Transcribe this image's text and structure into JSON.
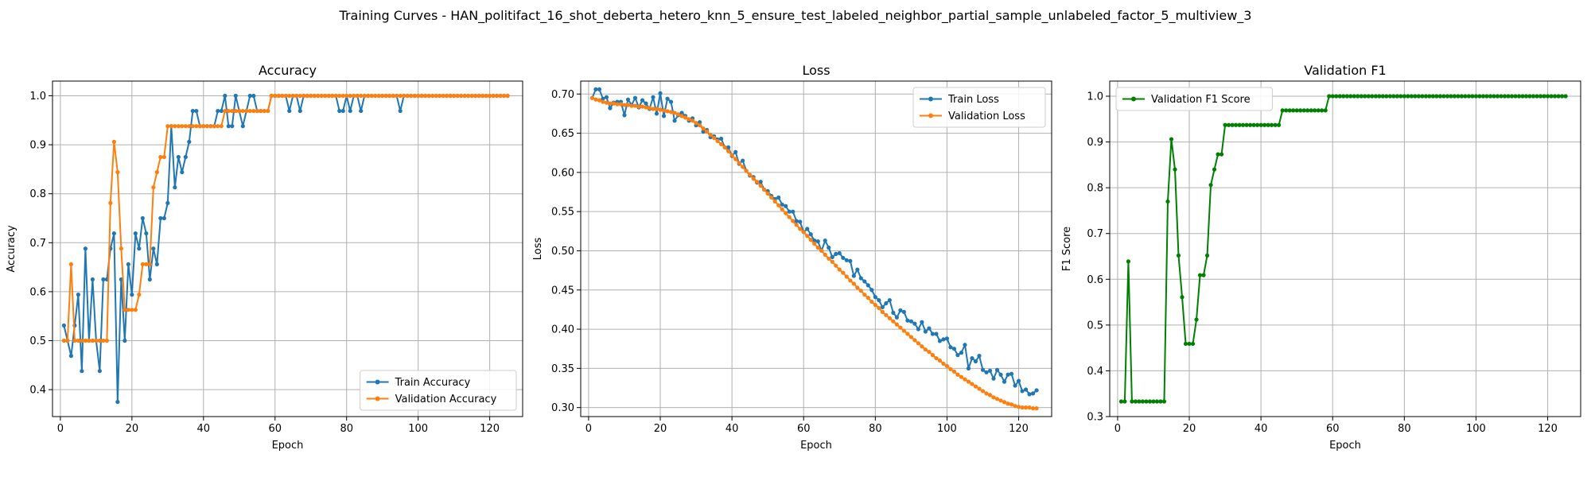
{
  "suptitle": "Training Curves - HAN_politifact_16_shot_deberta_hetero_knn_5_ensure_test_labeled_neighbor_partial_sample_unlabeled_factor_5_multiview_3",
  "chart_data": [
    {
      "type": "line",
      "title": "Accuracy",
      "xlabel": "Epoch",
      "ylabel": "Accuracy",
      "xlim": [
        -2.2,
        129.2
      ],
      "ylim": [
        0.345,
        1.03
      ],
      "xticks": [
        0,
        20,
        40,
        60,
        80,
        100,
        120
      ],
      "yticks": [
        0.4,
        0.5,
        0.6,
        0.7,
        0.8,
        0.9,
        1.0
      ],
      "ytick_labels": [
        "0.4",
        "0.5",
        "0.6",
        "0.7",
        "0.8",
        "0.9",
        "1.0"
      ],
      "legend_loc": "lower-right",
      "grid": true,
      "series": [
        {
          "name": "Train Accuracy",
          "color": "#1f77b4",
          "x_start": 1,
          "values": [
            0.531,
            0.5,
            0.469,
            0.531,
            0.594,
            0.438,
            0.688,
            0.5,
            0.625,
            0.5,
            0.438,
            0.625,
            0.625,
            0.688,
            0.719,
            0.375,
            0.625,
            0.5,
            0.656,
            0.594,
            0.719,
            0.688,
            0.75,
            0.719,
            0.625,
            0.688,
            0.656,
            0.75,
            0.75,
            0.781,
            0.938,
            0.813,
            0.875,
            0.844,
            0.875,
            0.906,
            0.969,
            0.969,
            0.938,
            0.938,
            0.938,
            0.938,
            0.938,
            0.969,
            0.969,
            1.0,
            0.938,
            0.938,
            1.0,
            0.969,
            0.938,
            0.969,
            1.0,
            1.0,
            0.969,
            0.969,
            0.969,
            0.969,
            1.0,
            1.0,
            1.0,
            1.0,
            1.0,
            0.969,
            1.0,
            1.0,
            0.969,
            1.0,
            1.0,
            1.0,
            1.0,
            1.0,
            1.0,
            1.0,
            1.0,
            1.0,
            1.0,
            0.969,
            0.969,
            1.0,
            0.969,
            1.0,
            1.0,
            0.969,
            1.0,
            1.0,
            1.0,
            1.0,
            1.0,
            1.0,
            1.0,
            1.0,
            1.0,
            1.0,
            0.969,
            1.0,
            1.0,
            1.0,
            1.0,
            1.0,
            1.0,
            1.0,
            1.0,
            1.0,
            1.0,
            1.0,
            1.0,
            1.0,
            1.0,
            1.0,
            1.0,
            1.0,
            1.0,
            1.0,
            1.0,
            1.0,
            1.0,
            1.0,
            1.0,
            1.0,
            1.0,
            1.0,
            1.0,
            1.0,
            1.0
          ]
        },
        {
          "name": "Validation Accuracy",
          "color": "#ff7f0e",
          "x_start": 1,
          "values": [
            0.5,
            0.5,
            0.656,
            0.5,
            0.5,
            0.5,
            0.5,
            0.5,
            0.5,
            0.5,
            0.5,
            0.5,
            0.5,
            0.781,
            0.906,
            0.844,
            0.688,
            0.563,
            0.563,
            0.563,
            0.563,
            0.594,
            0.656,
            0.656,
            0.656,
            0.813,
            0.844,
            0.875,
            0.875,
            0.938,
            0.938,
            0.938,
            0.938,
            0.938,
            0.938,
            0.938,
            0.938,
            0.938,
            0.938,
            0.938,
            0.938,
            0.938,
            0.938,
            0.938,
            0.938,
            0.969,
            0.969,
            0.969,
            0.969,
            0.969,
            0.969,
            0.969,
            0.969,
            0.969,
            0.969,
            0.969,
            0.969,
            0.969,
            1.0,
            1.0,
            1.0,
            1.0,
            1.0,
            1.0,
            1.0,
            1.0,
            1.0,
            1.0,
            1.0,
            1.0,
            1.0,
            1.0,
            1.0,
            1.0,
            1.0,
            1.0,
            1.0,
            1.0,
            1.0,
            1.0,
            1.0,
            1.0,
            1.0,
            1.0,
            1.0,
            1.0,
            1.0,
            1.0,
            1.0,
            1.0,
            1.0,
            1.0,
            1.0,
            1.0,
            1.0,
            1.0,
            1.0,
            1.0,
            1.0,
            1.0,
            1.0,
            1.0,
            1.0,
            1.0,
            1.0,
            1.0,
            1.0,
            1.0,
            1.0,
            1.0,
            1.0,
            1.0,
            1.0,
            1.0,
            1.0,
            1.0,
            1.0,
            1.0,
            1.0,
            1.0,
            1.0,
            1.0,
            1.0,
            1.0,
            1.0
          ]
        }
      ]
    },
    {
      "type": "line",
      "title": "Loss",
      "xlabel": "Epoch",
      "ylabel": "Loss",
      "xlim": [
        -2.2,
        129.2
      ],
      "ylim": [
        0.2885,
        0.7165
      ],
      "xticks": [
        0,
        20,
        40,
        60,
        80,
        100,
        120
      ],
      "yticks": [
        0.3,
        0.35,
        0.4,
        0.45,
        0.5,
        0.55,
        0.6,
        0.65,
        0.7
      ],
      "ytick_labels": [
        "0.30",
        "0.35",
        "0.40",
        "0.45",
        "0.50",
        "0.55",
        "0.60",
        "0.65",
        "0.70"
      ],
      "legend_loc": "top-right",
      "grid": true,
      "series": [
        {
          "name": "Train Loss",
          "color": "#1f77b4",
          "x_start": 1,
          "values": [
            0.695,
            0.706,
            0.706,
            0.694,
            0.696,
            0.682,
            0.689,
            0.69,
            0.69,
            0.673,
            0.693,
            0.686,
            0.695,
            0.683,
            0.692,
            0.688,
            0.681,
            0.696,
            0.675,
            0.701,
            0.672,
            0.694,
            0.69,
            0.666,
            0.673,
            0.676,
            0.672,
            0.666,
            0.669,
            0.66,
            0.664,
            0.652,
            0.654,
            0.645,
            0.646,
            0.642,
            0.643,
            0.632,
            0.632,
            0.621,
            0.626,
            0.611,
            0.615,
            0.602,
            0.596,
            0.594,
            0.587,
            0.588,
            0.578,
            0.576,
            0.57,
            0.566,
            0.568,
            0.559,
            0.557,
            0.55,
            0.55,
            0.538,
            0.537,
            0.524,
            0.528,
            0.521,
            0.513,
            0.512,
            0.5,
            0.513,
            0.504,
            0.492,
            0.496,
            0.497,
            0.491,
            0.488,
            0.487,
            0.468,
            0.476,
            0.465,
            0.461,
            0.456,
            0.45,
            0.441,
            0.437,
            0.428,
            0.433,
            0.437,
            0.421,
            0.415,
            0.424,
            0.422,
            0.411,
            0.41,
            0.407,
            0.4,
            0.409,
            0.397,
            0.401,
            0.394,
            0.394,
            0.385,
            0.387,
            0.388,
            0.377,
            0.375,
            0.367,
            0.37,
            0.38,
            0.35,
            0.363,
            0.359,
            0.366,
            0.348,
            0.345,
            0.347,
            0.337,
            0.348,
            0.342,
            0.333,
            0.342,
            0.343,
            0.328,
            0.334,
            0.321,
            0.323,
            0.317,
            0.318,
            0.322
          ]
        },
        {
          "name": "Validation Loss",
          "color": "#ff7f0e",
          "x_start": 1,
          "values": [
            0.695,
            0.693,
            0.692,
            0.69,
            0.689,
            0.688,
            0.688,
            0.687,
            0.687,
            0.686,
            0.686,
            0.685,
            0.685,
            0.684,
            0.684,
            0.683,
            0.682,
            0.681,
            0.681,
            0.68,
            0.679,
            0.678,
            0.677,
            0.676,
            0.674,
            0.672,
            0.67,
            0.668,
            0.666,
            0.663,
            0.66,
            0.656,
            0.652,
            0.648,
            0.644,
            0.64,
            0.636,
            0.632,
            0.627,
            0.622,
            0.617,
            0.612,
            0.607,
            0.602,
            0.597,
            0.592,
            0.588,
            0.583,
            0.578,
            0.573,
            0.568,
            0.563,
            0.558,
            0.553,
            0.548,
            0.543,
            0.538,
            0.533,
            0.528,
            0.524,
            0.519,
            0.514,
            0.509,
            0.504,
            0.5,
            0.495,
            0.49,
            0.486,
            0.481,
            0.476,
            0.472,
            0.467,
            0.462,
            0.458,
            0.453,
            0.449,
            0.444,
            0.44,
            0.435,
            0.431,
            0.427,
            0.422,
            0.418,
            0.414,
            0.41,
            0.406,
            0.402,
            0.398,
            0.394,
            0.39,
            0.386,
            0.382,
            0.378,
            0.374,
            0.371,
            0.367,
            0.363,
            0.36,
            0.356,
            0.353,
            0.349,
            0.346,
            0.342,
            0.339,
            0.336,
            0.333,
            0.33,
            0.327,
            0.324,
            0.321,
            0.318,
            0.316,
            0.313,
            0.311,
            0.309,
            0.307,
            0.305,
            0.304,
            0.302,
            0.301,
            0.3,
            0.3,
            0.3,
            0.299,
            0.299
          ]
        }
      ]
    },
    {
      "type": "line",
      "title": "Validation F1",
      "xlabel": "Epoch",
      "ylabel": "F1 Score",
      "xlim": [
        -2.2,
        129.2
      ],
      "ylim": [
        0.3,
        1.033
      ],
      "xticks": [
        0,
        20,
        40,
        60,
        80,
        100,
        120
      ],
      "yticks": [
        0.3,
        0.4,
        0.5,
        0.6,
        0.7,
        0.8,
        0.9,
        1.0
      ],
      "ytick_labels": [
        "0.3",
        "0.4",
        "0.5",
        "0.6",
        "0.7",
        "0.8",
        "0.9",
        "1.0"
      ],
      "legend_loc": "top-left",
      "grid": true,
      "series": [
        {
          "name": "Validation F1 Score",
          "color": "#008000",
          "x_start": 1,
          "values": [
            0.333,
            0.333,
            0.639,
            0.333,
            0.333,
            0.333,
            0.333,
            0.333,
            0.333,
            0.333,
            0.333,
            0.333,
            0.333,
            0.77,
            0.906,
            0.84,
            0.652,
            0.561,
            0.459,
            0.459,
            0.459,
            0.512,
            0.609,
            0.609,
            0.652,
            0.806,
            0.84,
            0.873,
            0.873,
            0.937,
            0.937,
            0.937,
            0.937,
            0.937,
            0.937,
            0.937,
            0.937,
            0.937,
            0.937,
            0.937,
            0.937,
            0.937,
            0.937,
            0.937,
            0.937,
            0.969,
            0.969,
            0.969,
            0.969,
            0.969,
            0.969,
            0.969,
            0.969,
            0.969,
            0.969,
            0.969,
            0.969,
            0.969,
            1.0,
            1.0,
            1.0,
            1.0,
            1.0,
            1.0,
            1.0,
            1.0,
            1.0,
            1.0,
            1.0,
            1.0,
            1.0,
            1.0,
            1.0,
            1.0,
            1.0,
            1.0,
            1.0,
            1.0,
            1.0,
            1.0,
            1.0,
            1.0,
            1.0,
            1.0,
            1.0,
            1.0,
            1.0,
            1.0,
            1.0,
            1.0,
            1.0,
            1.0,
            1.0,
            1.0,
            1.0,
            1.0,
            1.0,
            1.0,
            1.0,
            1.0,
            1.0,
            1.0,
            1.0,
            1.0,
            1.0,
            1.0,
            1.0,
            1.0,
            1.0,
            1.0,
            1.0,
            1.0,
            1.0,
            1.0,
            1.0,
            1.0,
            1.0,
            1.0,
            1.0,
            1.0,
            1.0,
            1.0,
            1.0,
            1.0,
            1.0
          ]
        }
      ]
    }
  ]
}
